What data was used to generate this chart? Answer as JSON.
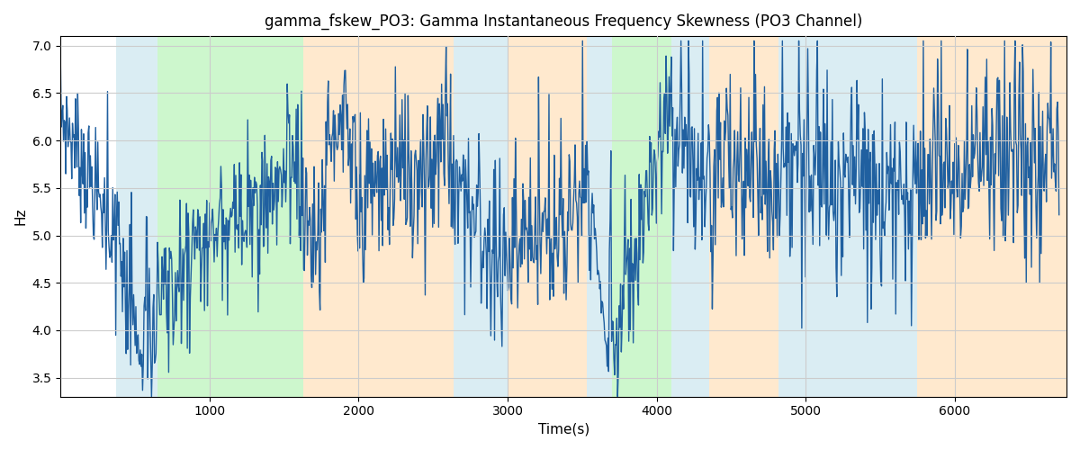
{
  "title": "gamma_fskew_PO3: Gamma Instantaneous Frequency Skewness (PO3 Channel)",
  "xlabel": "Time(s)",
  "ylabel": "Hz",
  "ylim": [
    3.3,
    7.1
  ],
  "xlim": [
    0,
    6750
  ],
  "bg_regions": [
    {
      "xmin": 370,
      "xmax": 650,
      "color": "#add8e6",
      "alpha": 0.45
    },
    {
      "xmin": 650,
      "xmax": 1630,
      "color": "#90ee90",
      "alpha": 0.45
    },
    {
      "xmin": 1630,
      "xmax": 2640,
      "color": "#ffd59e",
      "alpha": 0.5
    },
    {
      "xmin": 2640,
      "xmax": 3000,
      "color": "#add8e6",
      "alpha": 0.45
    },
    {
      "xmin": 3000,
      "xmax": 3530,
      "color": "#ffd59e",
      "alpha": 0.5
    },
    {
      "xmin": 3530,
      "xmax": 3700,
      "color": "#add8e6",
      "alpha": 0.45
    },
    {
      "xmin": 3700,
      "xmax": 4100,
      "color": "#90ee90",
      "alpha": 0.45
    },
    {
      "xmin": 4100,
      "xmax": 4350,
      "color": "#add8e6",
      "alpha": 0.45
    },
    {
      "xmin": 4350,
      "xmax": 4820,
      "color": "#ffd59e",
      "alpha": 0.5
    },
    {
      "xmin": 4820,
      "xmax": 5750,
      "color": "#add8e6",
      "alpha": 0.45
    },
    {
      "xmin": 5750,
      "xmax": 6750,
      "color": "#ffd59e",
      "alpha": 0.5
    }
  ],
  "line_color": "#2060a0",
  "line_width": 1.0,
  "grid_color": "#cccccc",
  "xticks": [
    1000,
    2000,
    3000,
    4000,
    5000,
    6000
  ],
  "yticks": [
    3.5,
    4.0,
    4.5,
    5.0,
    5.5,
    6.0,
    6.5,
    7.0
  ]
}
